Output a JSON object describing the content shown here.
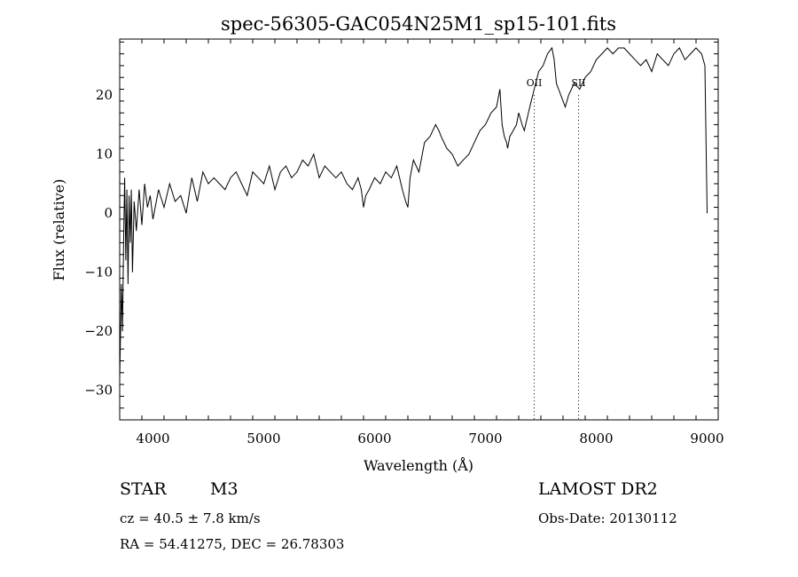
{
  "chart_data": {
    "type": "line",
    "title": "spec-56305-GAC054N25M1_sp15-101.fits",
    "xlabel": "Wavelength (Å)",
    "ylabel": "Flux (relative)",
    "xlim": [
      3700,
      9100
    ],
    "ylim": [
      -35,
      29.5
    ],
    "xticks": [
      4000,
      5000,
      6000,
      7000,
      8000,
      9000
    ],
    "yticks": [
      -30,
      -20,
      -10,
      0,
      10,
      20
    ],
    "grid": false,
    "line_color": "#000000",
    "annotations": [
      {
        "label": "OII",
        "x": 7440
      },
      {
        "label": "SII",
        "x": 7840
      }
    ],
    "series": [
      {
        "x": [
          3700,
          3715,
          3725,
          3735,
          3745,
          3755,
          3765,
          3775,
          3785,
          3795,
          3805,
          3815,
          3830,
          3850,
          3875,
          3900,
          3925,
          3950,
          3975,
          4000,
          4050,
          4100,
          4150,
          4200,
          4250,
          4300,
          4350,
          4400,
          4450,
          4500,
          4550,
          4600,
          4650,
          4700,
          4750,
          4800,
          4850,
          4900,
          4950,
          5000,
          5050,
          5100,
          5150,
          5200,
          5250,
          5300,
          5350,
          5400,
          5450,
          5500,
          5550,
          5600,
          5650,
          5700,
          5750,
          5800,
          5850,
          5880,
          5900,
          5920,
          5950,
          6000,
          6050,
          6100,
          6150,
          6200,
          6250,
          6280,
          6300,
          6320,
          6350,
          6400,
          6450,
          6500,
          6550,
          6580,
          6600,
          6650,
          6700,
          6750,
          6800,
          6850,
          6900,
          6950,
          7000,
          7050,
          7100,
          7130,
          7150,
          7170,
          7190,
          7200,
          7220,
          7250,
          7280,
          7300,
          7330,
          7350,
          7400,
          7440,
          7480,
          7520,
          7560,
          7600,
          7620,
          7640,
          7660,
          7680,
          7700,
          7720,
          7750,
          7800,
          7850,
          7900,
          7950,
          8000,
          8050,
          8100,
          8150,
          8200,
          8250,
          8300,
          8350,
          8400,
          8450,
          8500,
          8550,
          8600,
          8650,
          8700,
          8750,
          8800,
          8850,
          8900,
          8950,
          8980,
          9000
        ],
        "y": [
          -28,
          -12,
          -20,
          -5,
          6,
          -8,
          4,
          -12,
          3,
          -5,
          4,
          -10,
          2,
          -3,
          4,
          -2,
          5,
          1,
          3,
          -1,
          4,
          1,
          5,
          2,
          3,
          0,
          6,
          2,
          7,
          5,
          6,
          5,
          4,
          6,
          7,
          5,
          3,
          7,
          6,
          5,
          8,
          4,
          7,
          8,
          6,
          7,
          9,
          8,
          10,
          6,
          8,
          7,
          6,
          7,
          5,
          4,
          6,
          4,
          1,
          3,
          4,
          6,
          5,
          7,
          6,
          8,
          4,
          2,
          1,
          6,
          9,
          7,
          12,
          13,
          15,
          14,
          13,
          11,
          10,
          8,
          9,
          10,
          12,
          14,
          15,
          17,
          18,
          21,
          15,
          13,
          12,
          11,
          13,
          14,
          15,
          17,
          15,
          14,
          18,
          21,
          24,
          25,
          27,
          28,
          26,
          22,
          21,
          20,
          19,
          18,
          20,
          22,
          21,
          23,
          24,
          26,
          27,
          28,
          27,
          28,
          28,
          27,
          26,
          25,
          26,
          24,
          27,
          26,
          25,
          27,
          28,
          26,
          27,
          28,
          27,
          25,
          0
        ]
      }
    ]
  },
  "footer": {
    "object_type": "STAR",
    "subclass": "M3",
    "survey": "LAMOST DR2",
    "velocity": "cz = 40.5 ± 7.8 km/s",
    "obs_date": "Obs-Date: 20130112",
    "coords": "RA =  54.41275, DEC =  26.78303"
  }
}
